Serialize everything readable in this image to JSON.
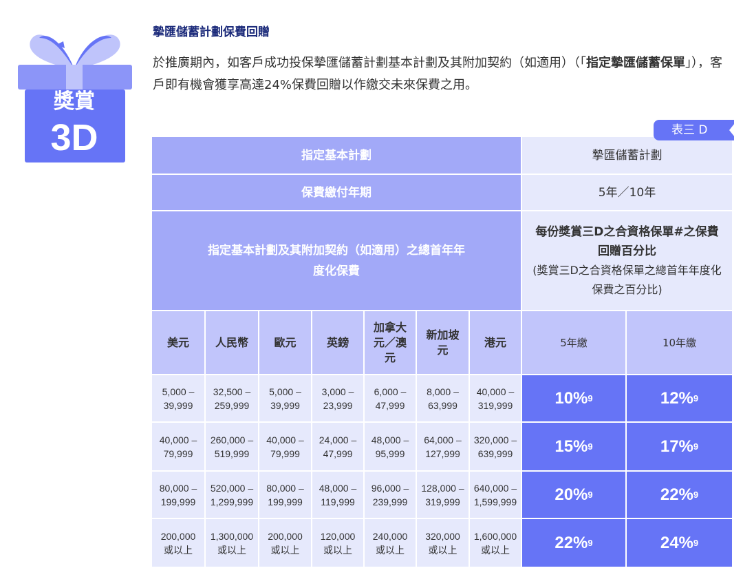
{
  "badge": {
    "line1": "獎賞",
    "line2": "3D"
  },
  "title": "摯匯儲蓄計劃保費回贈",
  "description": {
    "part1": "於推廣期內，如客戶成功投保摯匯儲蓄計劃基本計劃及其附加契約（如適用）（「",
    "bold": "指定摯匯儲蓄保單",
    "part2": "」），客戶即有機會獲享高達24%保費回贈以作繳交未來保費之用。"
  },
  "table_tag": "表三 D",
  "table": {
    "row1": {
      "label": "指定基本計劃",
      "value": "摯匯儲蓄計劃"
    },
    "row2": {
      "label": "保費繳付年期",
      "value": "5年／10年"
    },
    "row3": {
      "label": "指定基本計劃及其附加契約（如適用）之總首年年度化保費",
      "value_bold": "每份獎賞三D之合資格保單#之保費回贈百分比",
      "value_note": "(獎賞三D之合資格保單之總首年年度化保費之百分比)"
    },
    "currencies": [
      "美元",
      "人民幣",
      "歐元",
      "英鎊",
      "加拿大元／澳元",
      "新加坡元",
      "港元"
    ],
    "terms": [
      "5年繳",
      "10年繳"
    ],
    "rows": [
      {
        "ranges": [
          [
            "5,000 –",
            "39,999"
          ],
          [
            "32,500 –",
            "259,999"
          ],
          [
            "5,000 –",
            "39,999"
          ],
          [
            "3,000 –",
            "23,999"
          ],
          [
            "6,000 –",
            "47,999"
          ],
          [
            "8,000 –",
            "63,999"
          ],
          [
            "40,000 –",
            "319,999"
          ]
        ],
        "pct": [
          "10%",
          "12%"
        ]
      },
      {
        "ranges": [
          [
            "40,000 –",
            "79,999"
          ],
          [
            "260,000 –",
            "519,999"
          ],
          [
            "40,000 –",
            "79,999"
          ],
          [
            "24,000 –",
            "47,999"
          ],
          [
            "48,000 –",
            "95,999"
          ],
          [
            "64,000 –",
            "127,999"
          ],
          [
            "320,000 –",
            "639,999"
          ]
        ],
        "pct": [
          "15%",
          "17%"
        ]
      },
      {
        "ranges": [
          [
            "80,000 –",
            "199,999"
          ],
          [
            "520,000 –",
            "1,299,999"
          ],
          [
            "80,000 –",
            "199,999"
          ],
          [
            "48,000 –",
            "119,999"
          ],
          [
            "96,000 –",
            "239,999"
          ],
          [
            "128,000 –",
            "319,999"
          ],
          [
            "640,000 –",
            "1,599,999"
          ]
        ],
        "pct": [
          "20%",
          "22%"
        ]
      },
      {
        "ranges": [
          [
            "200,000",
            "或以上"
          ],
          [
            "1,300,000",
            "或以上"
          ],
          [
            "200,000",
            "或以上"
          ],
          [
            "120,000",
            "或以上"
          ],
          [
            "240,000",
            "或以上"
          ],
          [
            "320,000",
            "或以上"
          ],
          [
            "1,600,000",
            "或以上"
          ]
        ],
        "pct": [
          "22%",
          "24%"
        ]
      }
    ],
    "footnote_mark": "9"
  },
  "colors": {
    "accent": "#6674f6",
    "header": "#a2a9f8",
    "currency_header": "#c1c5fb",
    "cell": "#e6e9fc",
    "title": "#1b2a7a"
  }
}
